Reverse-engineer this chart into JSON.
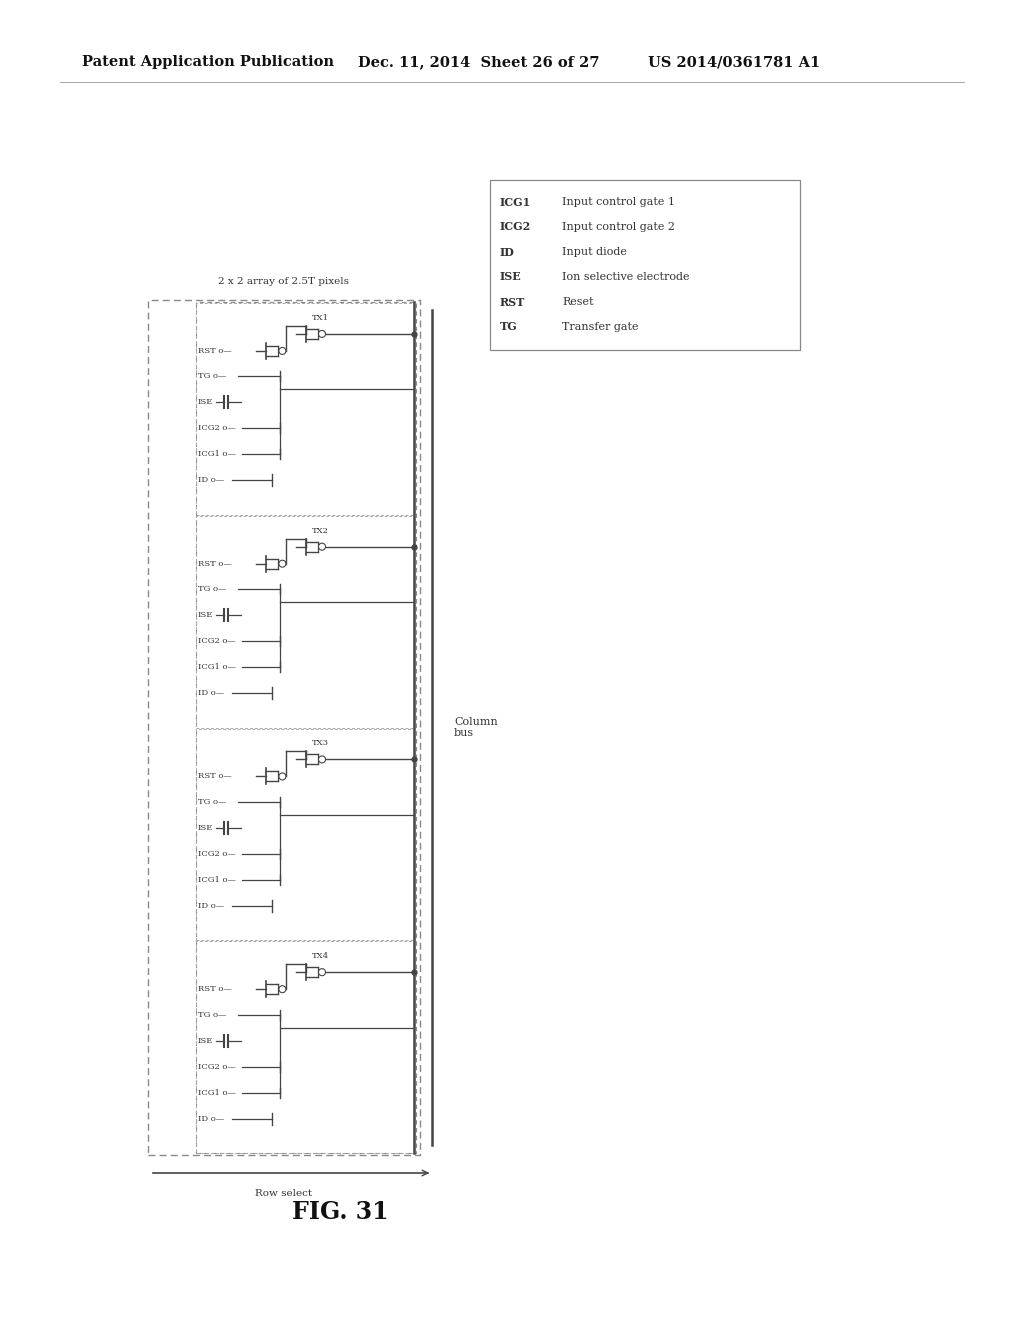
{
  "title": "FIG. 31",
  "header_left": "Patent Application Publication",
  "header_mid": "Dec. 11, 2014  Sheet 26 of 27",
  "header_right": "US 2014/0361781 A1",
  "diagram_title": "2 x 2 array of 2.5T pixels",
  "legend_items": [
    [
      "ICG1",
      "Input control gate 1"
    ],
    [
      "ICG2",
      "Input control gate 2"
    ],
    [
      "ID",
      "Input diode"
    ],
    [
      "ISE",
      "Ion selective electrode"
    ],
    [
      "RST",
      "Reset"
    ],
    [
      "TG",
      "Transfer gate"
    ]
  ],
  "tx_labels": [
    "TX1",
    "TX2",
    "TX3",
    "TX4"
  ],
  "column_bus_label": "Column\nbus",
  "row_select_label": "Row select",
  "bg_color": "#ffffff"
}
